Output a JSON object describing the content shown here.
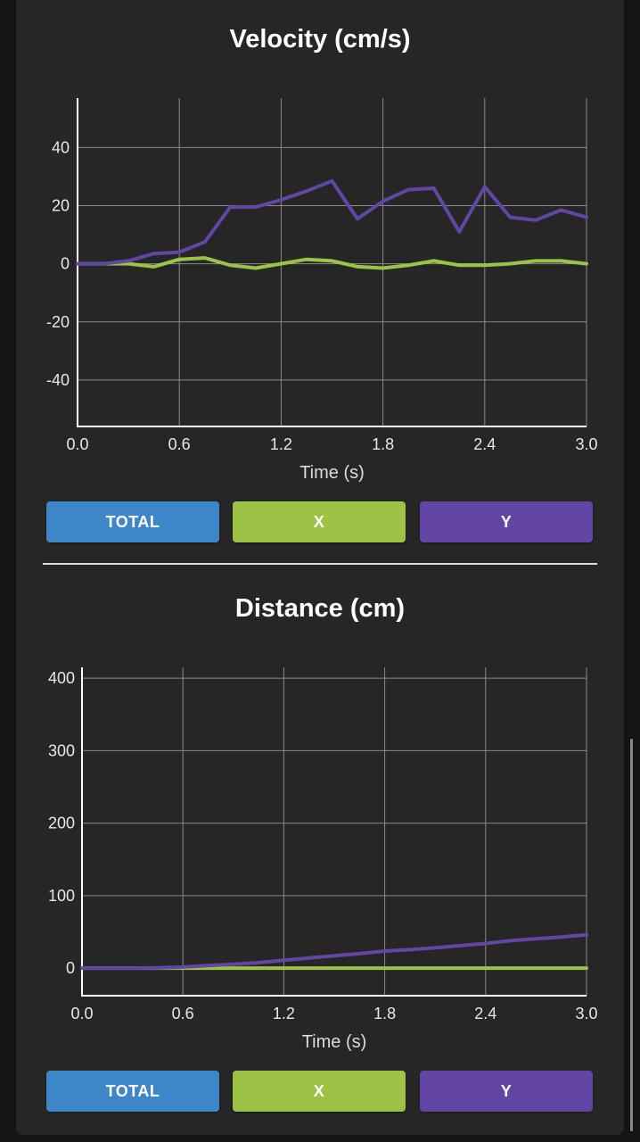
{
  "colors": {
    "total": "#3d87c8",
    "x": "#9cc346",
    "y": "#6245a4",
    "background": "#262626"
  },
  "buttons": {
    "total": "TOTAL",
    "x": "X",
    "y": "Y"
  },
  "chart_data": [
    {
      "type": "line",
      "title": "Velocity (cm/s)",
      "xlabel": "Time (s)",
      "ylabel": "",
      "xlim": [
        0.0,
        3.0
      ],
      "ylim": [
        -56,
        57
      ],
      "x_ticks": [
        "0.0",
        "0.6",
        "1.2",
        "1.8",
        "2.4",
        "3.0"
      ],
      "y_ticks": [
        "40",
        "20",
        "0",
        "-20",
        "-40"
      ],
      "x": [
        0.0,
        0.15,
        0.3,
        0.45,
        0.6,
        0.75,
        0.9,
        1.05,
        1.2,
        1.35,
        1.5,
        1.65,
        1.8,
        1.95,
        2.1,
        2.25,
        2.4,
        2.55,
        2.7,
        2.85,
        3.0
      ],
      "series": [
        {
          "name": "X",
          "values": [
            0,
            0,
            0,
            -1,
            1.5,
            2,
            -0.5,
            -1.5,
            0,
            1.5,
            1,
            -1,
            -1.5,
            -0.5,
            1,
            -0.5,
            -0.5,
            0,
            1,
            1,
            0
          ]
        },
        {
          "name": "Y",
          "values": [
            0,
            0,
            1,
            3.5,
            4,
            7.5,
            19.5,
            19.5,
            22,
            25,
            28.5,
            15.5,
            21.5,
            25.5,
            26,
            11,
            26.5,
            16,
            15,
            18.5,
            16
          ]
        }
      ]
    },
    {
      "type": "line",
      "title": "Distance (cm)",
      "xlabel": "Time (s)",
      "ylabel": "",
      "xlim": [
        0.0,
        3.0
      ],
      "ylim": [
        -38,
        415
      ],
      "x_ticks": [
        "0.0",
        "0.6",
        "1.2",
        "1.8",
        "2.4",
        "3.0"
      ],
      "y_ticks": [
        "400",
        "300",
        "200",
        "100",
        "0"
      ],
      "x": [
        0.0,
        0.15,
        0.3,
        0.45,
        0.6,
        0.75,
        0.9,
        1.05,
        1.2,
        1.35,
        1.5,
        1.65,
        1.8,
        1.95,
        2.1,
        2.25,
        2.4,
        2.55,
        2.7,
        2.85,
        3.0
      ],
      "series": [
        {
          "name": "X",
          "values": [
            0,
            0,
            0,
            0,
            0,
            0,
            0,
            0,
            0,
            0,
            0,
            0,
            0,
            0,
            0,
            0,
            0,
            0,
            0,
            0,
            0
          ]
        },
        {
          "name": "Y",
          "values": [
            0,
            0,
            0,
            0.5,
            1.5,
            3.5,
            5.5,
            7.5,
            11,
            14,
            17,
            20,
            23.5,
            25.5,
            28,
            31,
            34,
            38,
            40.5,
            43,
            46
          ]
        }
      ]
    }
  ]
}
